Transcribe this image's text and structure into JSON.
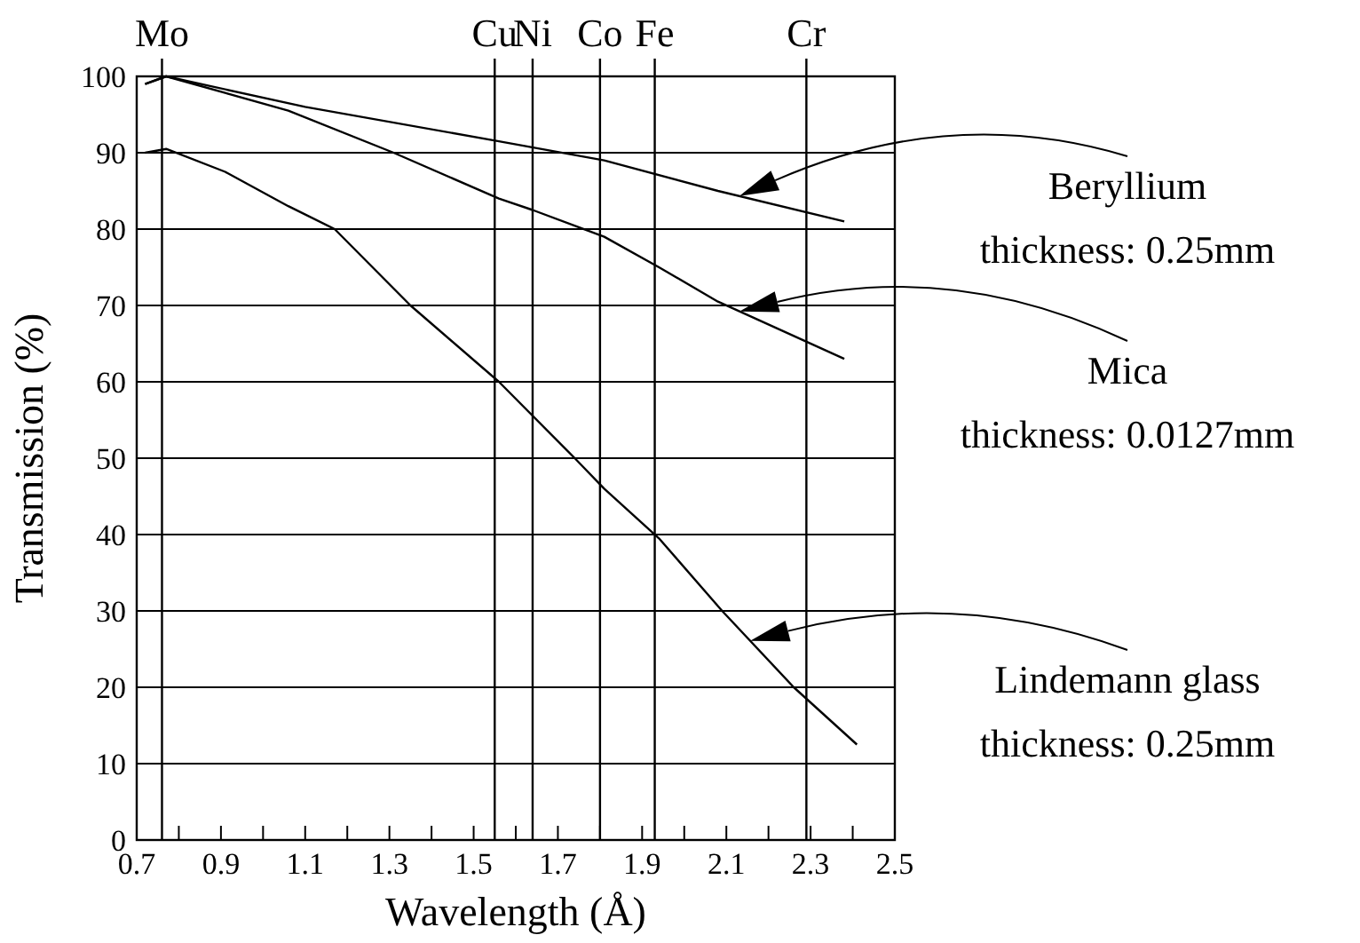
{
  "chart_data": {
    "type": "line",
    "xlabel": "Wavelength (Å)",
    "ylabel": "Transmission (%)",
    "xlim": [
      0.7,
      2.5
    ],
    "xticks": [
      0.7,
      {
        "value": 0.8,
        "label": null
      },
      0.9,
      {
        "value": 1.0,
        "label": null
      },
      1.1,
      {
        "value": 1.2,
        "label": null
      },
      1.3,
      {
        "value": 1.4,
        "label": null
      },
      1.5,
      {
        "value": 1.6,
        "label": null
      },
      1.7,
      {
        "value": 1.8,
        "label": null
      },
      1.9,
      {
        "value": 2.0,
        "label": null
      },
      2.1,
      {
        "value": 2.2,
        "label": null
      },
      2.3,
      {
        "value": 2.4,
        "label": null
      },
      2.5
    ],
    "ylim": [
      0,
      100
    ],
    "yticks": [
      0,
      10,
      20,
      30,
      40,
      50,
      60,
      70,
      80,
      90,
      100
    ],
    "grid": "y",
    "marker": "none",
    "line_style": "solid",
    "series": [
      {
        "color": "#000000",
        "x": [
          0.72,
          0.77,
          1.1,
          1.56,
          1.81,
          2.08,
          2.38
        ],
        "values": [
          99,
          100,
          96,
          91.5,
          89,
          85,
          81
        ]
      },
      {
        "color": "#000000",
        "x": [
          0.72,
          0.77,
          1.06,
          1.31,
          1.56,
          1.64,
          1.81,
          1.94,
          2.08,
          2.38
        ],
        "values": [
          99,
          100,
          95.5,
          90,
          84,
          82.5,
          79,
          75,
          70.5,
          63
        ]
      },
      {
        "color": "#000000",
        "x": [
          0.72,
          0.77,
          0.91,
          1.06,
          1.17,
          1.35,
          1.56,
          1.74,
          1.81,
          1.94,
          2.09,
          2.26,
          2.41
        ],
        "values": [
          90,
          90.5,
          87.5,
          83,
          80,
          70,
          60,
          50,
          46,
          39.5,
          30,
          20,
          12.5
        ]
      }
    ],
    "ref_lines": [
      {
        "axis": "x",
        "value": 0.76,
        "label": "Mo",
        "color": "#000000"
      },
      {
        "axis": "x",
        "value": 1.55,
        "label": "Cu",
        "color": "#000000"
      },
      {
        "axis": "x",
        "value": 1.64,
        "label": "Ni",
        "color": "#000000"
      },
      {
        "axis": "x",
        "value": 1.8,
        "label": "Co",
        "color": "#000000"
      },
      {
        "axis": "x",
        "value": 1.93,
        "label": "Fe",
        "color": "#000000"
      },
      {
        "axis": "x",
        "value": 2.29,
        "label": "Cr",
        "color": "#000000"
      }
    ],
    "annotations": [
      "Beryllium\nthickness: 0.25mm",
      "Mica\nthickness: 0.0127mm",
      "Lindemann glass\nthickness: 0.25mm"
    ]
  }
}
